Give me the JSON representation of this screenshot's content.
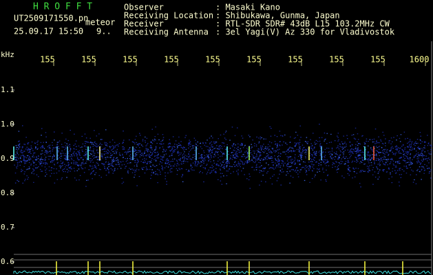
{
  "header": {
    "app": "H R O F F T",
    "file": "UT2509171550.pn",
    "mode": "meteor",
    "datetime": "25.09.17 15:50",
    "extra": "9..",
    "fields": [
      {
        "label": "Observer",
        "value": ": Masaki Kano"
      },
      {
        "label": "Receiving Location",
        "value": ": Shibukawa, Gunma, Japan"
      },
      {
        "label": "Receiver",
        "value": ": RTL-SDR SDR# 43dB L15 103.2MHz CW"
      },
      {
        "label": "Receiving Antenna",
        "value": ": 3el Yagi(V) Az 330 for Vladivostok"
      }
    ]
  },
  "axis": {
    "top_labels": [
      "155",
      "155",
      "155",
      "155",
      "155",
      "155",
      "155",
      "155",
      "155",
      "1600"
    ],
    "unit": "kHz",
    "left_labels": [
      "1.1",
      "1.0",
      "0.9",
      "0.8",
      "0.7",
      "0.6"
    ]
  }
}
